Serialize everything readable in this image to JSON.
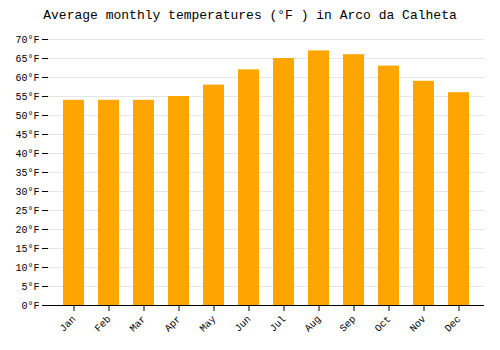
{
  "chart_data": {
    "type": "bar",
    "title": "Average monthly temperatures (°F ) in Arco da Calheta",
    "categories": [
      "Jan",
      "Feb",
      "Mar",
      "Apr",
      "May",
      "Jun",
      "Jul",
      "Aug",
      "Sep",
      "Oct",
      "Nov",
      "Dec"
    ],
    "values": [
      54,
      54,
      54,
      55,
      58,
      62,
      65,
      67,
      66,
      63,
      59,
      56
    ],
    "color": "#FFA500",
    "ylim": [
      0,
      70
    ],
    "yticks": [
      {
        "value": 0,
        "label": "0°F"
      },
      {
        "value": 5,
        "label": "5°F"
      },
      {
        "value": 10,
        "label": "10°F"
      },
      {
        "value": 15,
        "label": "15°F"
      },
      {
        "value": 20,
        "label": "20°F"
      },
      {
        "value": 25,
        "label": "25°F"
      },
      {
        "value": 30,
        "label": "30°F"
      },
      {
        "value": 35,
        "label": "35°F"
      },
      {
        "value": 40,
        "label": "40°F"
      },
      {
        "value": 45,
        "label": "45°F"
      },
      {
        "value": 50,
        "label": "50°F"
      },
      {
        "value": 55,
        "label": "55°F"
      },
      {
        "value": 60,
        "label": "60°F"
      },
      {
        "value": 65,
        "label": "65°F"
      },
      {
        "value": 70,
        "label": "70°F"
      }
    ],
    "grid": true
  }
}
